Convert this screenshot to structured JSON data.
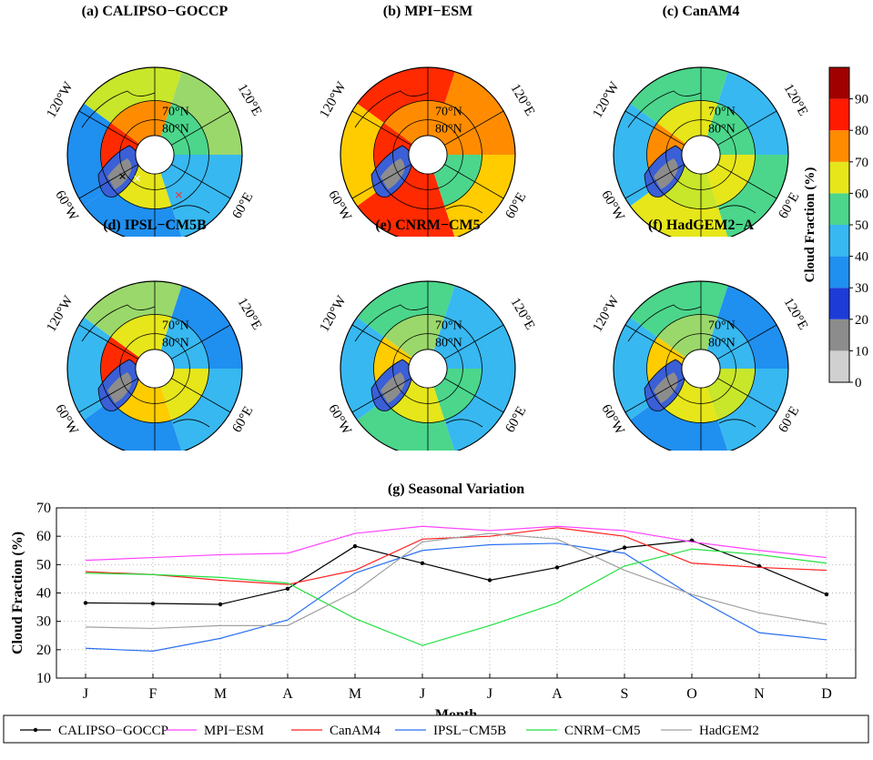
{
  "maps": [
    {
      "title": "(a) CALIPSO−GOCCP",
      "colors": [
        "#9ad86b",
        "#37b8f0",
        "#1f8ff0",
        "#1f8ff0",
        "#c8e62a",
        "#4bd68b",
        "#37b8f0",
        "#e6e61a",
        "#ff2a00",
        "#ff8c00"
      ],
      "markers": [
        {
          "a": 150,
          "r": 0.55,
          "c": "#ff3030"
        },
        {
          "a": 215,
          "r": 0.35,
          "c": "#ffffff"
        },
        {
          "a": 235,
          "r": 0.45,
          "c": "#000000"
        }
      ]
    },
    {
      "title": "(b) MPI−ESM",
      "colors": [
        "#ff8c00",
        "#ffcc00",
        "#ff2a00",
        "#ffcc00",
        "#ff2a00",
        "#ff8c00",
        "#4bd68b",
        "#ff2a00",
        "#ff2a00",
        "#ff8c00"
      ],
      "markers": []
    },
    {
      "title": "(c) CanAM4",
      "colors": [
        "#37b8f0",
        "#4bd68b",
        "#e6e61a",
        "#37b8f0",
        "#4bd68b",
        "#4bd68b",
        "#e6e61a",
        "#c8e62a",
        "#ff8c00",
        "#e6e61a"
      ],
      "markers": []
    },
    {
      "title": "(d) IPSL−CM5B",
      "colors": [
        "#1f8ff0",
        "#37b8f0",
        "#1f8ff0",
        "#37b8f0",
        "#9ad86b",
        "#37b8f0",
        "#e6e61a",
        "#ffcc00",
        "#ff2a00",
        "#e6e61a"
      ],
      "markers": []
    },
    {
      "title": "(e) CNRM−CM5",
      "colors": [
        "#37b8f0",
        "#37b8f0",
        "#4bd68b",
        "#37b8f0",
        "#4bd68b",
        "#37b8f0",
        "#4bd68b",
        "#e6e61a",
        "#ffcc00",
        "#9ad86b"
      ],
      "markers": []
    },
    {
      "title": "(f) HadGEM2−A",
      "colors": [
        "#1f8ff0",
        "#37b8f0",
        "#1f8ff0",
        "#37b8f0",
        "#4bd68b",
        "#37b8f0",
        "#c8e62a",
        "#e6e61a",
        "#ffcc00",
        "#9ad86b"
      ],
      "markers": []
    }
  ],
  "map_labels": {
    "lat70": "70°N",
    "lat80": "80°N",
    "lon120w": "120°W",
    "lon120e": "120°E",
    "lon60w": "60°W",
    "lon60e": "60°E",
    "lon0": "0°"
  },
  "colorbar": {
    "label": "Cloud Fraction (%)",
    "ticks": [
      "0",
      "10",
      "20",
      "30",
      "40",
      "50",
      "60",
      "70",
      "80",
      "90"
    ],
    "colors": [
      "#d0d0d0",
      "#8c8c8c",
      "#1d3bd6",
      "#1f8ff0",
      "#37b8f0",
      "#4bd68b",
      "#e6e61a",
      "#ff8c00",
      "#ff1a00",
      "#a00000"
    ]
  },
  "chart_data": {
    "type": "line",
    "title": "(g) Seasonal Variation",
    "xlabel": "Month",
    "ylabel": "Cloud Fraction (%)",
    "categories": [
      "J",
      "F",
      "M",
      "A",
      "M",
      "J",
      "J",
      "A",
      "S",
      "O",
      "N",
      "D"
    ],
    "ylim": [
      10,
      70
    ],
    "yticks": [
      10,
      20,
      30,
      40,
      50,
      60,
      70
    ],
    "grid": true,
    "legend_position": "bottom",
    "series": [
      {
        "name": "CALIPSO−GOCCP",
        "color": "#000000",
        "markers": true,
        "values": [
          36.5,
          36.3,
          36.0,
          41.5,
          56.5,
          50.5,
          44.5,
          49.0,
          56.0,
          58.5,
          49.5,
          39.5
        ]
      },
      {
        "name": "MPI−ESM",
        "color": "#ff44ff",
        "markers": false,
        "values": [
          51.5,
          52.5,
          53.5,
          54.0,
          61.0,
          63.5,
          62.0,
          63.5,
          62.0,
          58.0,
          55.0,
          52.5
        ]
      },
      {
        "name": "CanAM4",
        "color": "#ff2020",
        "markers": false,
        "values": [
          47.5,
          46.5,
          44.5,
          43.0,
          48.0,
          59.0,
          60.0,
          63.0,
          60.0,
          50.5,
          49.0,
          48.0
        ]
      },
      {
        "name": "IPSL−CM5B",
        "color": "#2a6ff0",
        "markers": false,
        "values": [
          20.5,
          19.5,
          24.0,
          30.5,
          47.0,
          55.0,
          57.0,
          57.5,
          54.0,
          39.0,
          26.0,
          23.5
        ]
      },
      {
        "name": "CNRM−CM5",
        "color": "#20e040",
        "markers": false,
        "values": [
          47.0,
          46.5,
          45.5,
          43.5,
          31.0,
          21.5,
          28.5,
          36.5,
          49.5,
          55.5,
          53.5,
          50.5
        ]
      },
      {
        "name": "HadGEM2",
        "color": "#a0a0a0",
        "markers": false,
        "values": [
          28.0,
          27.5,
          28.5,
          28.5,
          40.5,
          58.0,
          61.0,
          59.0,
          48.0,
          39.5,
          33.0,
          29.0
        ]
      }
    ]
  }
}
